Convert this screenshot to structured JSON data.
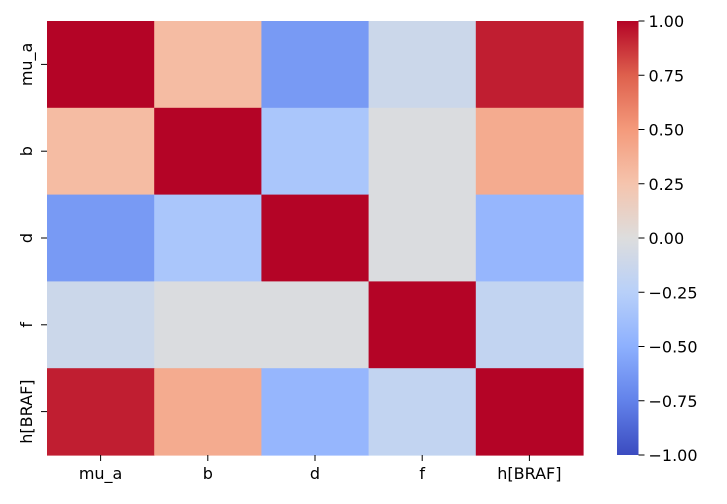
{
  "chart_data": {
    "type": "heatmap",
    "title": "",
    "xlabel": "",
    "ylabel": "",
    "x_labels": [
      "mu_a",
      "b",
      "d",
      "f",
      "h[BRAF]"
    ],
    "y_labels": [
      "mu_a",
      "b",
      "d",
      "f",
      "h[BRAF]"
    ],
    "matrix": [
      [
        1.0,
        0.3,
        -0.62,
        -0.12,
        0.93
      ],
      [
        0.3,
        1.0,
        -0.33,
        -0.02,
        0.4
      ],
      [
        -0.62,
        -0.33,
        1.0,
        -0.02,
        -0.45
      ],
      [
        -0.12,
        -0.02,
        -0.02,
        1.0,
        -0.18
      ],
      [
        0.93,
        0.4,
        -0.45,
        -0.18,
        1.0
      ]
    ],
    "colormap": "coolwarm",
    "vmin": -1.0,
    "vmax": 1.0,
    "colorbar": {
      "ticks": [
        1.0,
        0.75,
        0.5,
        0.25,
        0.0,
        -0.25,
        -0.5,
        -0.75,
        -1.0
      ],
      "tick_labels": [
        "1.00",
        "0.75",
        "0.50",
        "0.25",
        "0.00",
        "−0.25",
        "−0.50",
        "−0.75",
        "−1.00"
      ]
    },
    "grid": false,
    "legend": "colorbar-right"
  }
}
